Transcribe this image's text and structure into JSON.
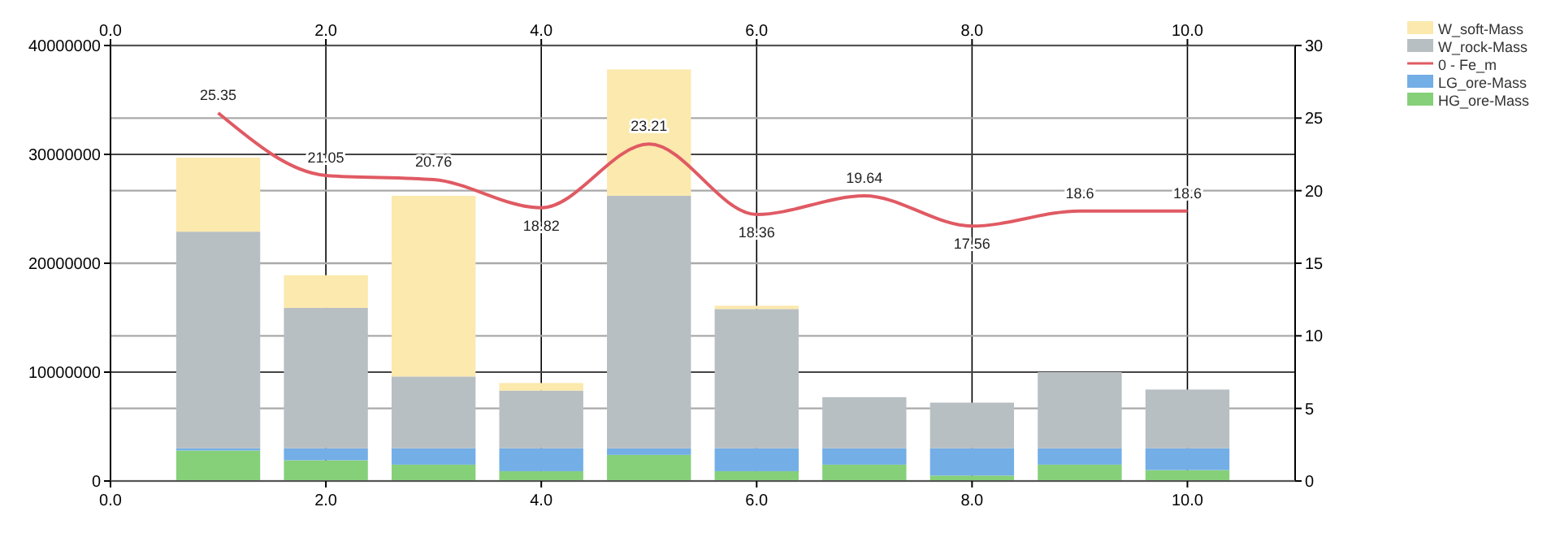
{
  "chart_data": {
    "type": "bar",
    "stacked": true,
    "x": [
      1,
      2,
      3,
      4,
      5,
      6,
      7,
      8,
      9,
      10
    ],
    "xlim": [
      0,
      11
    ],
    "xticks": [
      {
        "value": 0,
        "label": "0.0"
      },
      {
        "value": 2,
        "label": "2.0"
      },
      {
        "value": 4,
        "label": "4.0"
      },
      {
        "value": 6,
        "label": "6.0"
      },
      {
        "value": 8,
        "label": "8.0"
      },
      {
        "value": 10,
        "label": "10.0"
      }
    ],
    "x2lim": [
      0,
      11
    ],
    "x2ticks": [
      {
        "value": 0,
        "label": "0.0"
      },
      {
        "value": 2,
        "label": "2.0"
      },
      {
        "value": 4,
        "label": "4.0"
      },
      {
        "value": 6,
        "label": "6.0"
      },
      {
        "value": 8,
        "label": "8.0"
      },
      {
        "value": 10,
        "label": "10.0"
      }
    ],
    "ylim": [
      0,
      40000000
    ],
    "yticks": [
      0,
      10000000,
      20000000,
      30000000,
      40000000
    ],
    "y2lim": [
      0,
      30
    ],
    "y2ticks": [
      0,
      5,
      10,
      15,
      20,
      25,
      30
    ],
    "grid": true,
    "legend": "top right",
    "series": [
      {
        "name": "HG_ore-Mass",
        "color": "#86d07a",
        "values": [
          2800000,
          1900000,
          1500000,
          900000,
          2400000,
          900000,
          1500000,
          500000,
          1500000,
          1000000
        ]
      },
      {
        "name": "LG_ore-Mass",
        "color": "#73aee6",
        "values": [
          200000,
          1100000,
          1500000,
          2100000,
          600000,
          2100000,
          1500000,
          2500000,
          1500000,
          2000000
        ]
      },
      {
        "name": "0 - Fe_m",
        "type": "line",
        "axis": "y2",
        "color": "#e05a63",
        "marker": "none",
        "values": [
          25.35,
          21.05,
          20.76,
          18.82,
          23.21,
          18.36,
          19.64,
          17.56,
          18.6,
          18.6
        ],
        "value_labels": [
          "25.35",
          "21.05",
          "20.76",
          "18.82",
          "23.21",
          "18.36",
          "19.64",
          "17.56",
          "18.6",
          "18.6"
        ]
      },
      {
        "name": "W_rock-Mass",
        "color": "#b8bfc2",
        "values": [
          19900000,
          12900000,
          6600000,
          5300000,
          23200000,
          12800000,
          4700000,
          4200000,
          7000000,
          5400000
        ]
      },
      {
        "name": "W_soft-Mass",
        "color": "#fbe9ad",
        "values": [
          6800000,
          3000000,
          16600000,
          700000,
          11600000,
          300000,
          0,
          0,
          0,
          0
        ]
      }
    ]
  }
}
